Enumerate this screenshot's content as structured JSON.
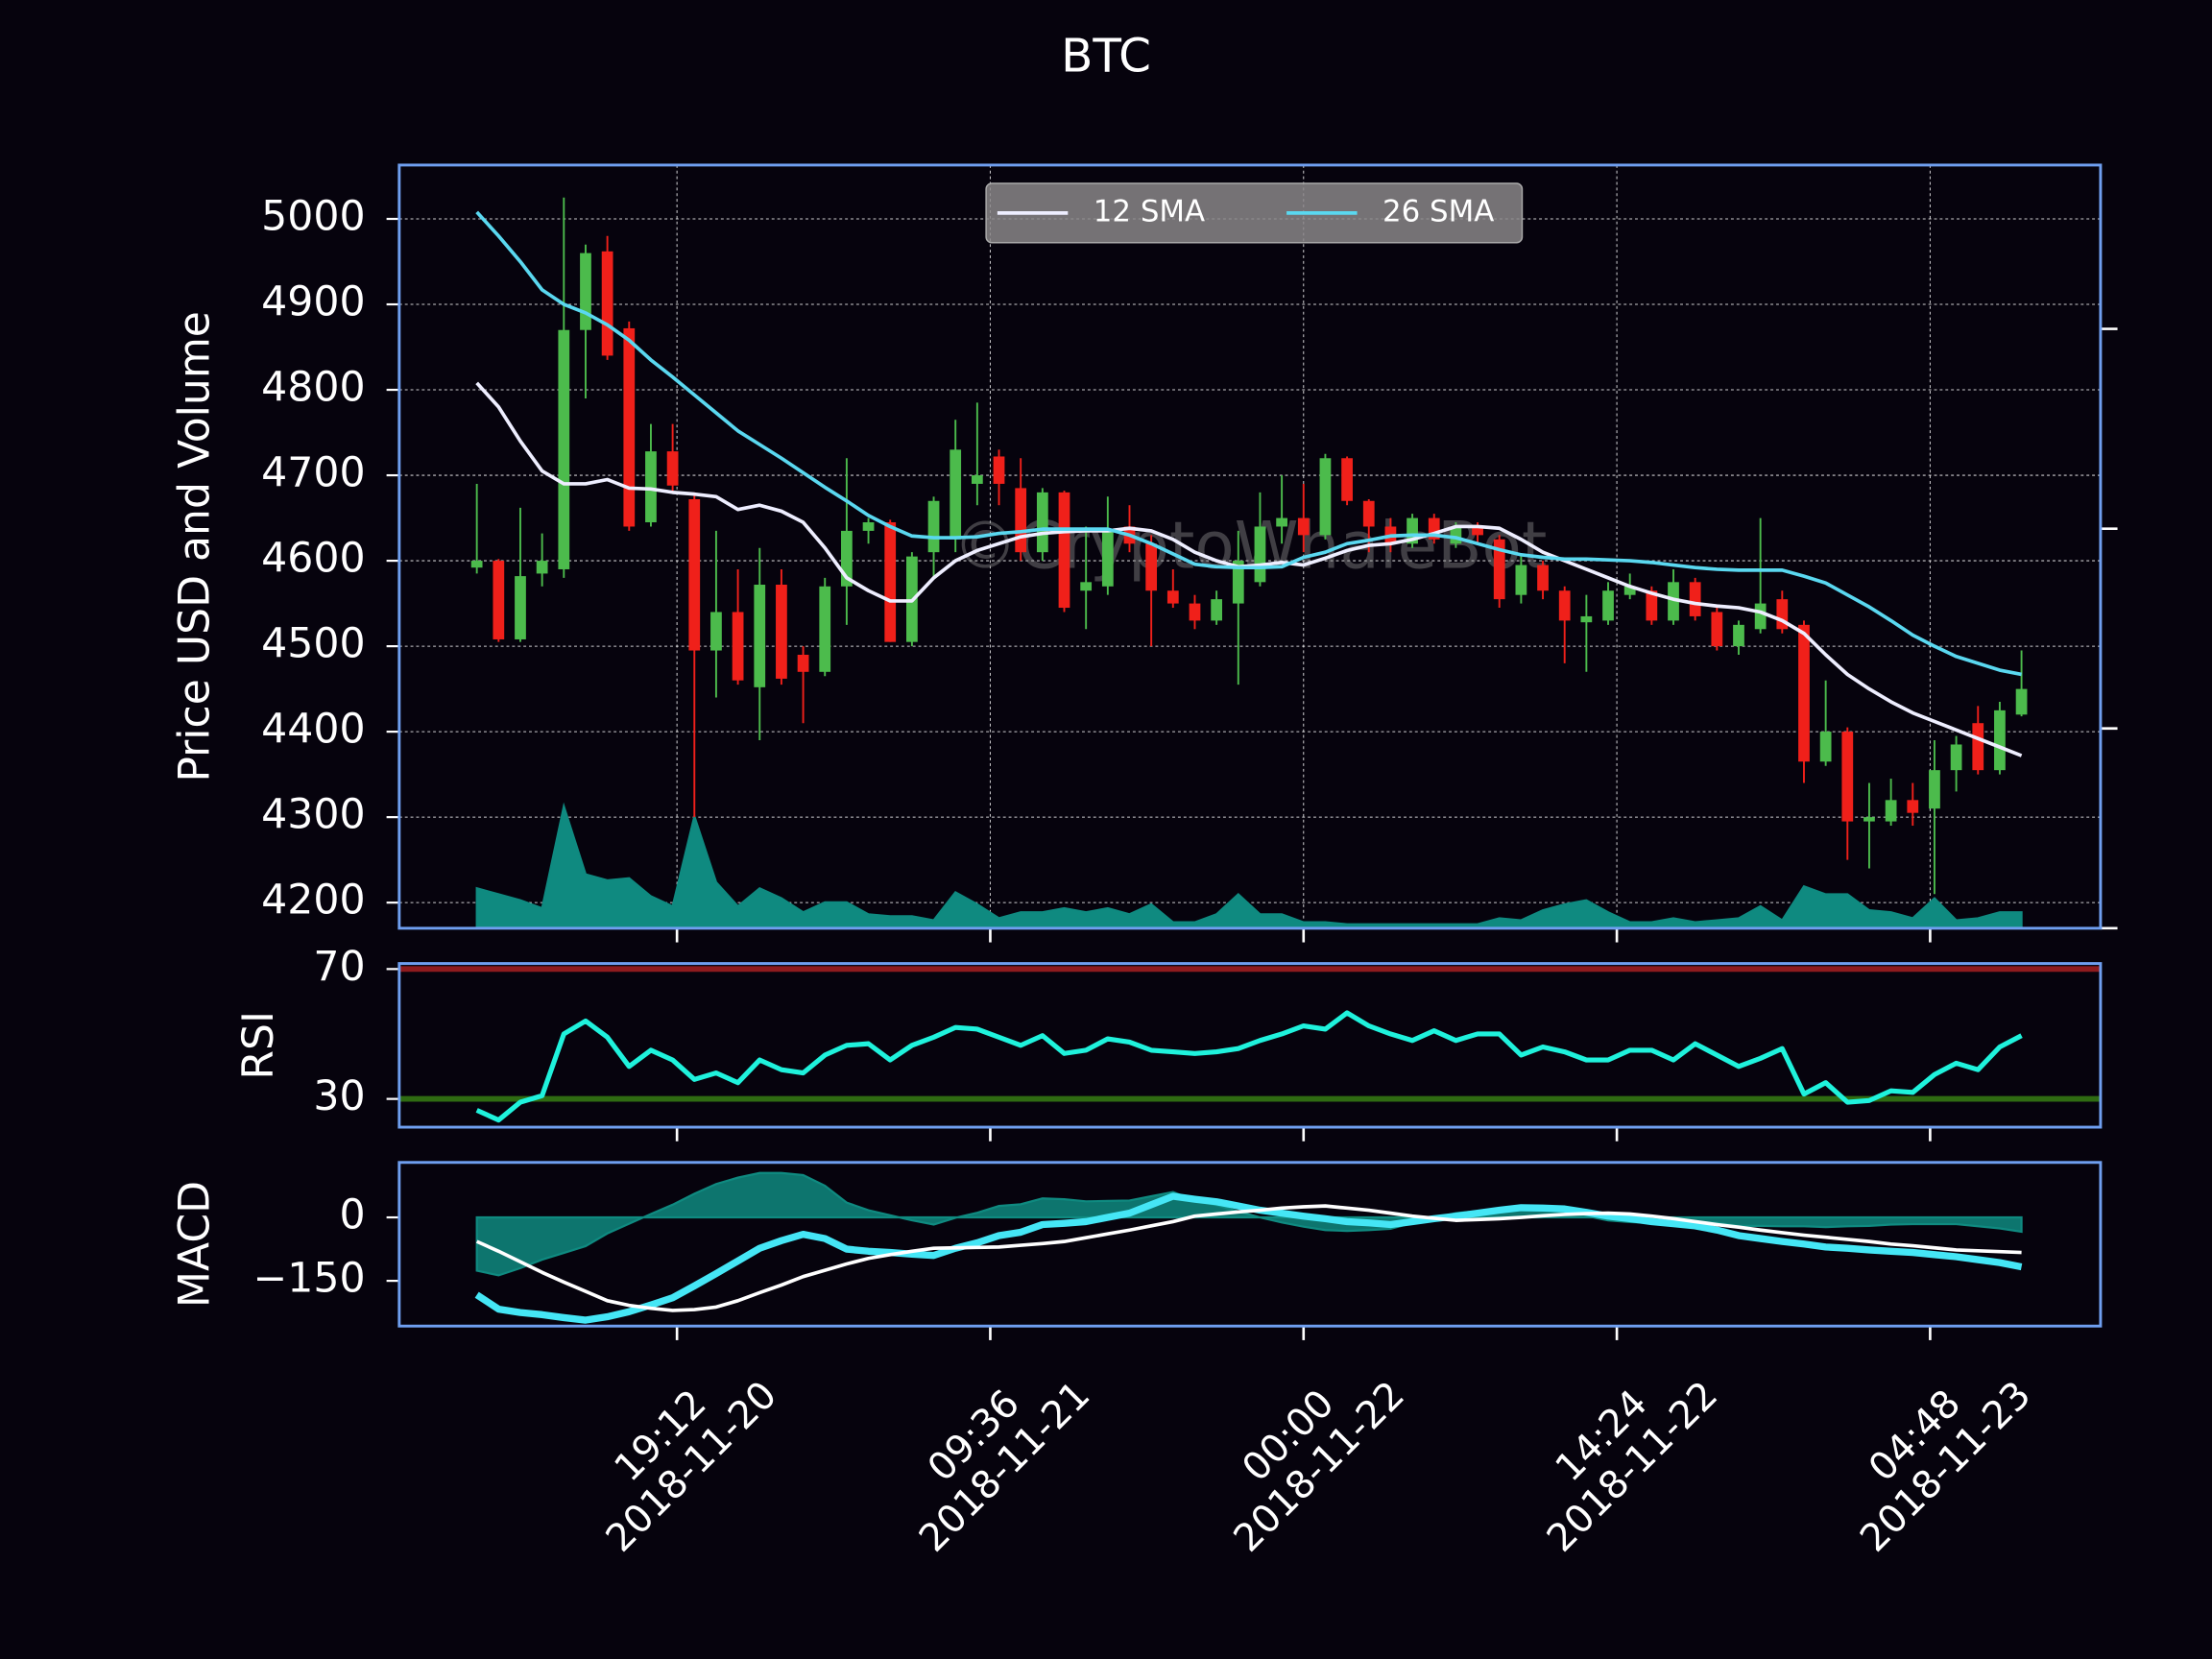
{
  "chart_data": {
    "title": "BTC",
    "x": [
      "2018-11-20 10:00",
      "2018-11-20 11:00",
      "2018-11-20 12:00",
      "2018-11-20 13:00",
      "2018-11-20 14:00",
      "2018-11-20 15:00",
      "2018-11-20 16:00",
      "2018-11-20 17:00",
      "2018-11-20 18:00",
      "2018-11-20 19:00",
      "2018-11-20 20:00",
      "2018-11-20 21:00",
      "2018-11-20 22:00",
      "2018-11-20 23:00",
      "2018-11-21 00:00",
      "2018-11-21 01:00",
      "2018-11-21 02:00",
      "2018-11-21 03:00",
      "2018-11-21 04:00",
      "2018-11-21 05:00",
      "2018-11-21 06:00",
      "2018-11-21 07:00",
      "2018-11-21 08:00",
      "2018-11-21 09:00",
      "2018-11-21 10:00",
      "2018-11-21 11:00",
      "2018-11-21 12:00",
      "2018-11-21 13:00",
      "2018-11-21 14:00",
      "2018-11-21 15:00",
      "2018-11-21 16:00",
      "2018-11-21 17:00",
      "2018-11-21 18:00",
      "2018-11-21 19:00",
      "2018-11-21 20:00",
      "2018-11-21 21:00",
      "2018-11-21 22:00",
      "2018-11-21 23:00",
      "2018-11-22 00:00",
      "2018-11-22 01:00",
      "2018-11-22 02:00",
      "2018-11-22 03:00",
      "2018-11-22 04:00",
      "2018-11-22 05:00",
      "2018-11-22 06:00",
      "2018-11-22 07:00",
      "2018-11-22 08:00",
      "2018-11-22 09:00",
      "2018-11-22 10:00",
      "2018-11-22 11:00",
      "2018-11-22 12:00",
      "2018-11-22 13:00",
      "2018-11-22 14:00",
      "2018-11-22 15:00",
      "2018-11-22 16:00",
      "2018-11-22 17:00",
      "2018-11-22 18:00",
      "2018-11-22 19:00",
      "2018-11-22 20:00",
      "2018-11-22 21:00",
      "2018-11-22 22:00",
      "2018-11-22 23:00",
      "2018-11-23 00:00",
      "2018-11-23 01:00",
      "2018-11-23 02:00",
      "2018-11-23 03:00",
      "2018-11-23 04:00",
      "2018-11-23 05:00",
      "2018-11-23 06:00",
      "2018-11-23 07:00",
      "2018-11-23 08:00",
      "2018-11-23 09:00"
    ],
    "xlim": [
      "2018-11-20 06:26",
      "2018-11-23 12:38"
    ],
    "xticks": [
      {
        "value": "2018-11-20 19:12",
        "label": "19:12\n2018-11-20"
      },
      {
        "value": "2018-11-21 09:36",
        "label": "09:36\n2018-11-21"
      },
      {
        "value": "2018-11-22 00:00",
        "label": "00:00\n2018-11-22"
      },
      {
        "value": "2018-11-22 14:24",
        "label": "14:24\n2018-11-22"
      },
      {
        "value": "2018-11-23 04:48",
        "label": "04:48\n2018-11-23"
      }
    ],
    "panels": [
      {
        "type": "candlestick",
        "ylabel": "Price USD and Volume",
        "ylim": [
          4170,
          5063
        ],
        "yticks": [
          4200,
          4300,
          4400,
          4500,
          4600,
          4700,
          4800,
          4900,
          5000
        ],
        "y2lim": [
          0,
          3.82
        ],
        "y2ticks": [
          0,
          1,
          2,
          3
        ],
        "grid": true,
        "legend": "upper center",
        "watermark": "©CryptoWhaleBot",
        "up_color": "#4cbb4c",
        "down_color": "#f0201a",
        "open": [
          4592,
          4600,
          4508,
          4585,
          4590,
          4870,
          4962,
          4872,
          4645,
          4728,
          4672,
          4495,
          4540,
          4452,
          4572,
          4490,
          4470,
          4570,
          4635,
          4645,
          4505,
          4610,
          4625,
          4690,
          4722,
          4685,
          4610,
          4680,
          4565,
          4570,
          4640,
          4620,
          4565,
          4550,
          4530,
          4550,
          4575,
          4640,
          4650,
          4630,
          4720,
          4670,
          4640,
          4620,
          4650,
          4620,
          4640,
          4625,
          4560,
          4595,
          4565,
          4528,
          4530,
          4560,
          4565,
          4530,
          4575,
          4540,
          4500,
          4520,
          4555,
          4525,
          4365,
          4400,
          4295,
          4295,
          4320,
          4310,
          4355,
          4410,
          4355,
          4420
        ],
        "high": [
          4690,
          4602,
          4662,
          4632,
          5025,
          4970,
          4980,
          4880,
          4760,
          4760,
          4680,
          4635,
          4590,
          4615,
          4590,
          4500,
          4580,
          4720,
          4650,
          4648,
          4610,
          4675,
          4765,
          4785,
          4730,
          4720,
          4685,
          4682,
          4640,
          4675,
          4665,
          4630,
          4590,
          4560,
          4565,
          4635,
          4680,
          4700,
          4690,
          4725,
          4722,
          4672,
          4650,
          4655,
          4655,
          4645,
          4645,
          4630,
          4605,
          4600,
          4570,
          4560,
          4575,
          4585,
          4570,
          4590,
          4580,
          4545,
          4530,
          4650,
          4565,
          4530,
          4460,
          4405,
          4340,
          4345,
          4340,
          4390,
          4395,
          4430,
          4435,
          4495
        ],
        "low": [
          4585,
          4505,
          4505,
          4570,
          4580,
          4790,
          4835,
          4635,
          4640,
          4680,
          4300,
          4440,
          4455,
          4390,
          4455,
          4410,
          4465,
          4525,
          4620,
          4505,
          4500,
          4580,
          4610,
          4665,
          4665,
          4600,
          4600,
          4540,
          4520,
          4560,
          4610,
          4500,
          4545,
          4520,
          4525,
          4455,
          4570,
          4620,
          4610,
          4625,
          4665,
          4610,
          4610,
          4615,
          4620,
          4615,
          4620,
          4545,
          4550,
          4555,
          4480,
          4470,
          4525,
          4555,
          4525,
          4525,
          4530,
          4495,
          4490,
          4515,
          4515,
          4340,
          4360,
          4250,
          4240,
          4290,
          4290,
          4210,
          4330,
          4350,
          4350,
          4418
        ],
        "close": [
          4600,
          4508,
          4582,
          4600,
          4870,
          4960,
          4840,
          4640,
          4728,
          4688,
          4495,
          4540,
          4460,
          4572,
          4462,
          4470,
          4570,
          4635,
          4645,
          4505,
          4605,
          4670,
          4730,
          4700,
          4690,
          4610,
          4680,
          4545,
          4575,
          4635,
          4620,
          4565,
          4550,
          4530,
          4555,
          4600,
          4640,
          4650,
          4630,
          4720,
          4670,
          4640,
          4620,
          4650,
          4625,
          4640,
          4630,
          4555,
          4595,
          4565,
          4530,
          4535,
          4565,
          4570,
          4530,
          4575,
          4535,
          4500,
          4525,
          4550,
          4520,
          4365,
          4400,
          4295,
          4300,
          4320,
          4305,
          4355,
          4385,
          4355,
          4425,
          4450
        ],
        "volume": [
          0.2,
          0.17,
          0.14,
          0.1,
          0.61,
          0.27,
          0.24,
          0.25,
          0.16,
          0.11,
          0.56,
          0.23,
          0.11,
          0.2,
          0.15,
          0.08,
          0.13,
          0.13,
          0.07,
          0.06,
          0.06,
          0.04,
          0.18,
          0.12,
          0.05,
          0.08,
          0.08,
          0.1,
          0.08,
          0.1,
          0.07,
          0.12,
          0.03,
          0.03,
          0.07,
          0.17,
          0.07,
          0.07,
          0.03,
          0.03,
          0.02,
          0.02,
          0.02,
          0.02,
          0.02,
          0.02,
          0.02,
          0.05,
          0.04,
          0.09,
          0.12,
          0.14,
          0.08,
          0.03,
          0.03,
          0.05,
          0.03,
          0.04,
          0.05,
          0.11,
          0.04,
          0.21,
          0.17,
          0.17,
          0.09,
          0.08,
          0.05,
          0.15,
          0.04,
          0.05,
          0.08,
          0.08
        ],
        "volume_color": "#0f8a80",
        "series": [
          {
            "name": "12 SMA",
            "color": "#eeeeff",
            "values": [
              4808,
              4780,
              4740,
              4705,
              4690,
              4690,
              4695,
              4685,
              4684,
              4680,
              4678,
              4675,
              4660,
              4665,
              4658,
              4645,
              4615,
              4580,
              4565,
              4553,
              4553,
              4580,
              4600,
              4612,
              4620,
              4628,
              4632,
              4634,
              4635,
              4635,
              4638,
              4635,
              4625,
              4610,
              4600,
              4593,
              4595,
              4598,
              4595,
              4603,
              4612,
              4618,
              4620,
              4625,
              4632,
              4640,
              4640,
              4638,
              4625,
              4610,
              4600,
              4590,
              4580,
              4570,
              4562,
              4555,
              4550,
              4547,
              4545,
              4540,
              4530,
              4515,
              4490,
              4467,
              4450,
              4435,
              4422,
              4412,
              4402,
              4392,
              4382,
              4372
            ]
          },
          {
            "name": "26 SMA",
            "color": "#5ad8f0",
            "values": [
              5008,
              4980,
              4950,
              4917,
              4900,
              4890,
              4876,
              4858,
              4835,
              4815,
              4794,
              4773,
              4752,
              4736,
              4720,
              4703,
              4686,
              4670,
              4653,
              4640,
              4629,
              4627,
              4627,
              4628,
              4632,
              4634,
              4637,
              4637,
              4637,
              4637,
              4630,
              4620,
              4608,
              4596,
              4593,
              4592,
              4592,
              4593,
              4604,
              4610,
              4620,
              4624,
              4629,
              4630,
              4630,
              4627,
              4620,
              4613,
              4607,
              4604,
              4602,
              4602,
              4601,
              4600,
              4598,
              4595,
              4592,
              4590,
              4589,
              4589,
              4589,
              4582,
              4574,
              4560,
              4546,
              4530,
              4513,
              4500,
              4488,
              4480,
              4472,
              4467
            ]
          }
        ]
      },
      {
        "type": "line",
        "ylabel": "RSI",
        "ylim": [
          21.3,
          71.7
        ],
        "yticks": [
          30,
          70
        ],
        "hlines": [
          {
            "value": 70,
            "color": "#8e1b1e"
          },
          {
            "value": 30,
            "color": "#2f6b12"
          }
        ],
        "series": [
          {
            "color": "#1ff2dc",
            "values": [
              26.5,
              23.5,
              29,
              31,
              50,
              54,
              49,
              40,
              45,
              42,
              36,
              38,
              35,
              42,
              39,
              38,
              43.5,
              46.5,
              47,
              42,
              46.5,
              49,
              52,
              51.5,
              49,
              46.5,
              49.5,
              44,
              45,
              48.5,
              47.5,
              45,
              44.5,
              44,
              44.5,
              45.5,
              48,
              50,
              52.5,
              51.5,
              56.5,
              52.5,
              50,
              48,
              51,
              48,
              50,
              50,
              43.5,
              46,
              44.5,
              42,
              42,
              45,
              45,
              42,
              47,
              43.5,
              40,
              42.5,
              45.5,
              31.5,
              35,
              29,
              29.5,
              32.5,
              32,
              37.5,
              41,
              39,
              46,
              49.5
            ]
          }
        ]
      },
      {
        "type": "macd",
        "ylabel": "MACD",
        "ylim": [
          -257,
          130
        ],
        "yticks": [
          0,
          {
            "value": -150,
            "label": "−150"
          }
        ],
        "histogram": [
          -126,
          -137,
          -120,
          -100,
          -84,
          -68,
          -38,
          -15,
          8,
          30,
          56,
          79,
          94,
          105,
          105,
          100,
          75,
          35,
          17,
          5,
          -7,
          -17,
          -1,
          11,
          27,
          31,
          45,
          43,
          38,
          39,
          40,
          50,
          60,
          40,
          29,
          14,
          0,
          -12,
          -22,
          -30,
          -32,
          -30,
          -27,
          -13,
          -1,
          10,
          15,
          20,
          23,
          18,
          13,
          3,
          -7,
          -11,
          -13,
          -12,
          -10,
          -13,
          -20,
          -20,
          -21,
          -21,
          -23,
          -21,
          -20,
          -17,
          -16,
          -16,
          -16,
          -21,
          -26,
          -34
        ],
        "histogram_color": "#0f8a80",
        "series": [
          {
            "color": "#45e6f5",
            "values": [
              -183,
              -217,
              -225,
              -230,
              -237,
              -243,
              -235,
              -223,
              -207,
              -190,
              -162,
              -133,
              -103,
              -73,
              -55,
              -40,
              -50,
              -75,
              -80,
              -83,
              -87,
              -90,
              -73,
              -60,
              -43,
              -35,
              -17,
              -14,
              -10,
              0,
              10,
              30,
              50,
              43,
              37,
              27,
              17,
              10,
              3,
              -3,
              -10,
              -13,
              -17,
              -10,
              -3,
              3,
              10,
              17,
              23,
              22,
              20,
              12,
              3,
              -3,
              -10,
              -15,
              -20,
              -30,
              -43,
              -50,
              -57,
              -63,
              -70,
              -73,
              -77,
              -80,
              -83,
              -88,
              -93,
              -100,
              -107,
              -117
            ]
          },
          {
            "color": "#ffffff",
            "values": [
              -57,
              -80,
              -105,
              -130,
              -153,
              -175,
              -197,
              -208,
              -215,
              -220,
              -218,
              -212,
              -197,
              -178,
              -160,
              -140,
              -125,
              -110,
              -97,
              -88,
              -80,
              -73,
              -72,
              -71,
              -70,
              -66,
              -62,
              -57,
              -48,
              -39,
              -30,
              -20,
              -10,
              3,
              8,
              13,
              17,
              22,
              25,
              27,
              22,
              17,
              10,
              3,
              -2,
              -7,
              -5,
              -3,
              0,
              4,
              7,
              9,
              10,
              8,
              3,
              -3,
              -10,
              -17,
              -23,
              -30,
              -36,
              -42,
              -47,
              -52,
              -57,
              -63,
              -67,
              -72,
              -77,
              -79,
              -81,
              -83
            ]
          }
        ]
      }
    ]
  }
}
